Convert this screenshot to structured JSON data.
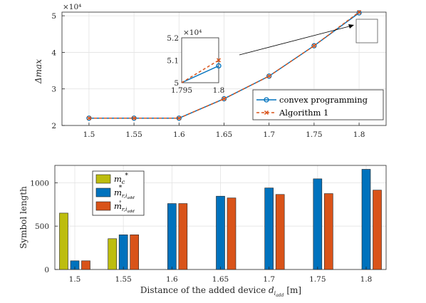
{
  "chart_data": [
    {
      "type": "line",
      "xlabel": "",
      "ylabel": "Δmax",
      "exponent_label": "×10⁴",
      "x": [
        1.5,
        1.55,
        1.6,
        1.65,
        1.7,
        1.75,
        1.8
      ],
      "x_ticks": [
        "1.5",
        "1.55",
        "1.6",
        "1.65",
        "1.7",
        "1.75",
        "1.8"
      ],
      "y_ticks": [
        "2",
        "3",
        "4",
        "5"
      ],
      "xlim": [
        1.47,
        1.83
      ],
      "ylim": [
        2.0,
        5.1
      ],
      "grid": true,
      "legend_position": "bottom-right",
      "series": [
        {
          "name": "convex programming",
          "color": "#0072BD",
          "marker": "circle",
          "line": "solid",
          "values": [
            2.2,
            2.2,
            2.2,
            2.73,
            3.35,
            4.18,
            5.08
          ]
        },
        {
          "name": "Algorithm 1",
          "color": "#D95319",
          "marker": "x",
          "line": "dashed",
          "values": [
            2.2,
            2.2,
            2.2,
            2.73,
            3.35,
            4.18,
            5.1
          ]
        }
      ],
      "inset": {
        "exponent_label": "×10⁴",
        "x_ticks": [
          "1.795",
          "1.8"
        ],
        "y_ticks": [
          "5",
          "5.1",
          "5.2"
        ],
        "xlim": [
          1.795,
          1.8
        ],
        "ylim": [
          5.0,
          5.2
        ],
        "series": [
          {
            "name": "convex programming",
            "x": [
              1.795,
              1.8
            ],
            "values": [
              4.975,
              5.075
            ]
          },
          {
            "name": "Algorithm 1",
            "x": [
              1.795,
              1.8
            ],
            "values": [
              5.0,
              5.1
            ]
          }
        ]
      }
    },
    {
      "type": "bar",
      "xlabel": "Distance of the added device d_{i_add} [m]",
      "ylabel": "Symbol length",
      "categories": [
        "1.5",
        "1.55",
        "1.6",
        "1.65",
        "1.7",
        "1.75",
        "1.8"
      ],
      "y_ticks": [
        "0",
        "500",
        "1000"
      ],
      "ylim": [
        0,
        1200
      ],
      "grid": true,
      "legend_position": "top-left",
      "series": [
        {
          "name": "m_c^*",
          "color": "#BDBD0E",
          "values": [
            650,
            355,
            null,
            null,
            null,
            null,
            null
          ]
        },
        {
          "name": "m_{r,i_add}^*",
          "color": "#0072BD",
          "values": [
            100,
            400,
            760,
            845,
            940,
            1045,
            1155
          ]
        },
        {
          "name": "m_{r,i_add}^∘",
          "color": "#D95319",
          "values": [
            100,
            400,
            760,
            825,
            865,
            875,
            915
          ]
        }
      ]
    }
  ]
}
